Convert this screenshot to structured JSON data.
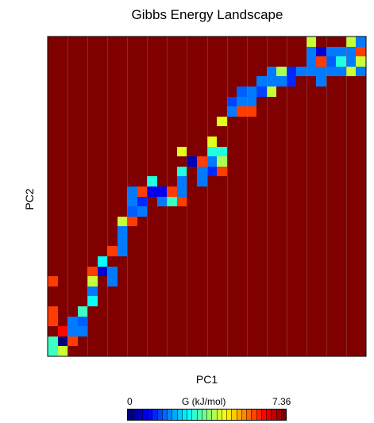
{
  "chart_data": {
    "type": "heatmap",
    "title": "Gibbs Energy Landscape",
    "xlabel": "PC1",
    "ylabel": "PC2",
    "colorbar": {
      "label": "G (kJ/mol)",
      "min_label": "0",
      "max_label": "7.36",
      "min": 0,
      "max": 7.36
    },
    "grid_size": [
      32,
      32
    ],
    "background_value": 7.36,
    "cells": [
      {
        "x": 0,
        "y": 0,
        "v": 3.2
      },
      {
        "x": 1,
        "y": 0,
        "v": 4.2
      },
      {
        "x": 0,
        "y": 1,
        "v": 3.2
      },
      {
        "x": 1,
        "y": 1,
        "v": 0.0
      },
      {
        "x": 2,
        "y": 1,
        "v": 6.0
      },
      {
        "x": 0,
        "y": 2,
        "v": 7.36
      },
      {
        "x": 1,
        "y": 2,
        "v": 6.4
      },
      {
        "x": 2,
        "y": 2,
        "v": 1.8
      },
      {
        "x": 3,
        "y": 2,
        "v": 1.8
      },
      {
        "x": 0,
        "y": 3,
        "v": 6.0
      },
      {
        "x": 2,
        "y": 3,
        "v": 1.8
      },
      {
        "x": 3,
        "y": 3,
        "v": 1.6
      },
      {
        "x": 0,
        "y": 4,
        "v": 6.0
      },
      {
        "x": 3,
        "y": 4,
        "v": 3.2
      },
      {
        "x": 4,
        "y": 5,
        "v": 2.8
      },
      {
        "x": 4,
        "y": 6,
        "v": 1.8
      },
      {
        "x": 0,
        "y": 7,
        "v": 6.0
      },
      {
        "x": 4,
        "y": 7,
        "v": 4.2
      },
      {
        "x": 6,
        "y": 7,
        "v": 1.8
      },
      {
        "x": 4,
        "y": 8,
        "v": 6.0
      },
      {
        "x": 5,
        "y": 8,
        "v": 0.6
      },
      {
        "x": 6,
        "y": 8,
        "v": 1.8
      },
      {
        "x": 5,
        "y": 9,
        "v": 2.8
      },
      {
        "x": 6,
        "y": 10,
        "v": 6.0
      },
      {
        "x": 7,
        "y": 10,
        "v": 1.8
      },
      {
        "x": 7,
        "y": 11,
        "v": 1.8
      },
      {
        "x": 7,
        "y": 12,
        "v": 1.8
      },
      {
        "x": 7,
        "y": 13,
        "v": 4.2
      },
      {
        "x": 8,
        "y": 13,
        "v": 6.0
      },
      {
        "x": 8,
        "y": 14,
        "v": 1.6
      },
      {
        "x": 9,
        "y": 14,
        "v": 1.8
      },
      {
        "x": 8,
        "y": 15,
        "v": 1.8
      },
      {
        "x": 9,
        "y": 15,
        "v": 1.2
      },
      {
        "x": 11,
        "y": 15,
        "v": 1.8
      },
      {
        "x": 12,
        "y": 15,
        "v": 3.2
      },
      {
        "x": 13,
        "y": 15,
        "v": 6.0
      },
      {
        "x": 8,
        "y": 16,
        "v": 1.8
      },
      {
        "x": 9,
        "y": 16,
        "v": 6.0
      },
      {
        "x": 10,
        "y": 16,
        "v": 0.8
      },
      {
        "x": 11,
        "y": 16,
        "v": 0.8
      },
      {
        "x": 12,
        "y": 16,
        "v": 6.0
      },
      {
        "x": 13,
        "y": 16,
        "v": 1.8
      },
      {
        "x": 10,
        "y": 17,
        "v": 3.0
      },
      {
        "x": 13,
        "y": 17,
        "v": 1.8
      },
      {
        "x": 15,
        "y": 17,
        "v": 1.8
      },
      {
        "x": 13,
        "y": 18,
        "v": 3.0
      },
      {
        "x": 15,
        "y": 18,
        "v": 1.8
      },
      {
        "x": 16,
        "y": 18,
        "v": 1.2
      },
      {
        "x": 17,
        "y": 18,
        "v": 6.0
      },
      {
        "x": 14,
        "y": 19,
        "v": 0.4
      },
      {
        "x": 15,
        "y": 19,
        "v": 6.0
      },
      {
        "x": 16,
        "y": 19,
        "v": 1.8
      },
      {
        "x": 17,
        "y": 19,
        "v": 4.0
      },
      {
        "x": 13,
        "y": 20,
        "v": 4.4
      },
      {
        "x": 16,
        "y": 20,
        "v": 3.0
      },
      {
        "x": 17,
        "y": 20,
        "v": 3.0
      },
      {
        "x": 16,
        "y": 21,
        "v": 4.4
      },
      {
        "x": 17,
        "y": 23,
        "v": 4.4
      },
      {
        "x": 18,
        "y": 24,
        "v": 1.8
      },
      {
        "x": 19,
        "y": 24,
        "v": 6.0
      },
      {
        "x": 20,
        "y": 24,
        "v": 6.0
      },
      {
        "x": 18,
        "y": 25,
        "v": 1.4
      },
      {
        "x": 19,
        "y": 25,
        "v": 1.8
      },
      {
        "x": 20,
        "y": 25,
        "v": 1.8
      },
      {
        "x": 19,
        "y": 26,
        "v": 1.6
      },
      {
        "x": 20,
        "y": 26,
        "v": 1.8
      },
      {
        "x": 21,
        "y": 26,
        "v": 1.4
      },
      {
        "x": 22,
        "y": 26,
        "v": 4.2
      },
      {
        "x": 21,
        "y": 27,
        "v": 1.8
      },
      {
        "x": 22,
        "y": 27,
        "v": 1.8
      },
      {
        "x": 23,
        "y": 27,
        "v": 1.8
      },
      {
        "x": 24,
        "y": 27,
        "v": 1.2
      },
      {
        "x": 27,
        "y": 27,
        "v": 1.8
      },
      {
        "x": 22,
        "y": 28,
        "v": 1.8
      },
      {
        "x": 23,
        "y": 28,
        "v": 4.0
      },
      {
        "x": 24,
        "y": 28,
        "v": 1.2
      },
      {
        "x": 25,
        "y": 28,
        "v": 1.8
      },
      {
        "x": 26,
        "y": 28,
        "v": 1.8
      },
      {
        "x": 27,
        "y": 28,
        "v": 1.8
      },
      {
        "x": 28,
        "y": 28,
        "v": 1.8
      },
      {
        "x": 29,
        "y": 28,
        "v": 1.8
      },
      {
        "x": 30,
        "y": 28,
        "v": 4.2
      },
      {
        "x": 31,
        "y": 28,
        "v": 1.8
      },
      {
        "x": 26,
        "y": 29,
        "v": 1.8
      },
      {
        "x": 27,
        "y": 29,
        "v": 6.0
      },
      {
        "x": 28,
        "y": 29,
        "v": 1.6
      },
      {
        "x": 29,
        "y": 29,
        "v": 3.0
      },
      {
        "x": 30,
        "y": 29,
        "v": 1.8
      },
      {
        "x": 31,
        "y": 29,
        "v": 4.2
      },
      {
        "x": 26,
        "y": 30,
        "v": 1.8
      },
      {
        "x": 27,
        "y": 30,
        "v": 0.6
      },
      {
        "x": 28,
        "y": 30,
        "v": 1.8
      },
      {
        "x": 29,
        "y": 30,
        "v": 1.8
      },
      {
        "x": 30,
        "y": 30,
        "v": 1.8
      },
      {
        "x": 31,
        "y": 30,
        "v": 6.0
      },
      {
        "x": 26,
        "y": 31,
        "v": 4.2
      },
      {
        "x": 30,
        "y": 31,
        "v": 4.2
      },
      {
        "x": 31,
        "y": 31,
        "v": 1.8
      }
    ]
  }
}
